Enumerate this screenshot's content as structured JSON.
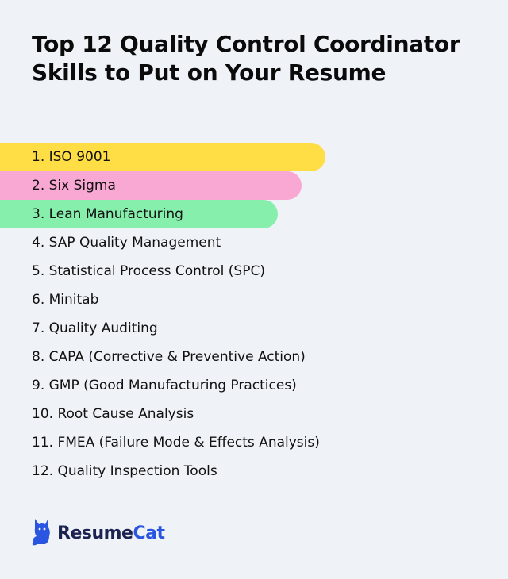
{
  "title": "Top 12 Quality Control Coordinator Skills to Put on Your Resume",
  "skills": [
    {
      "label": "1. ISO 9001",
      "highlight": "#ffde45",
      "fill": 0.64
    },
    {
      "label": "2. Six Sigma",
      "highlight": "#f9a8d4",
      "fill": 0.594
    },
    {
      "label": "3. Lean Manufacturing",
      "highlight": "#86efac",
      "fill": 0.547
    },
    {
      "label": "4. SAP Quality Management"
    },
    {
      "label": "5. Statistical Process Control (SPC)"
    },
    {
      "label": "6. Minitab"
    },
    {
      "label": "7. Quality Auditing"
    },
    {
      "label": "8. CAPA (Corrective & Preventive Action)"
    },
    {
      "label": "9. GMP (Good Manufacturing Practices)"
    },
    {
      "label": "10. Root Cause Analysis"
    },
    {
      "label": "11. FMEA (Failure Mode & Effects Analysis)"
    },
    {
      "label": "12. Quality Inspection Tools"
    }
  ],
  "brand": {
    "name_part1": "Resume",
    "name_part2": "Cat",
    "icon": "cat-logo-icon",
    "color": "#2a55e0"
  }
}
